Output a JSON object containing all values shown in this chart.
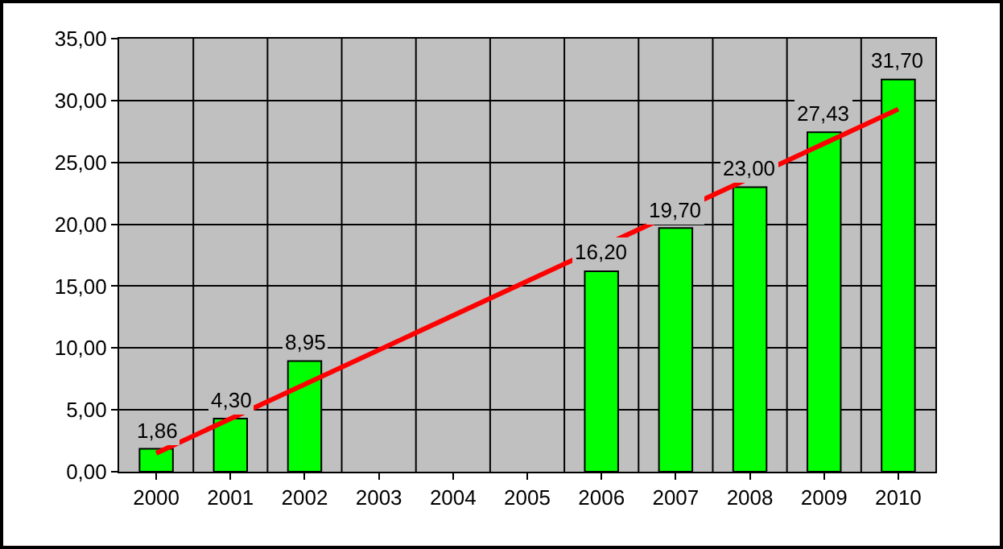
{
  "chart_data": {
    "type": "bar",
    "categories": [
      "2000",
      "2001",
      "2002",
      "2003",
      "2004",
      "2005",
      "2006",
      "2007",
      "2008",
      "2009",
      "2010"
    ],
    "series": [
      {
        "color": "#00ff00",
        "values": [
          1.86,
          4.3,
          8.95,
          null,
          null,
          null,
          16.2,
          19.7,
          23.0,
          27.43,
          31.7
        ],
        "value_labels": [
          "1,86",
          "4,30",
          "8,95",
          null,
          null,
          null,
          "16,20",
          "19,70",
          "23,00",
          "27,43",
          "31,70"
        ]
      },
      {
        "type": "line",
        "color": "#ff0000",
        "values": [
          1.5,
          null,
          null,
          null,
          null,
          null,
          null,
          null,
          null,
          null,
          29.3
        ]
      }
    ],
    "ylim": [
      0,
      35
    ],
    "yticks": [
      {
        "value": 0,
        "label": "0,00"
      },
      {
        "value": 5,
        "label": "5,00"
      },
      {
        "value": 10,
        "label": "10,00"
      },
      {
        "value": 15,
        "label": "15,00"
      },
      {
        "value": 20,
        "label": "20,00"
      },
      {
        "value": 25,
        "label": "25,00"
      },
      {
        "value": 30,
        "label": "30,00"
      },
      {
        "value": 35,
        "label": "35,00"
      }
    ],
    "grid": true,
    "legend": false
  }
}
